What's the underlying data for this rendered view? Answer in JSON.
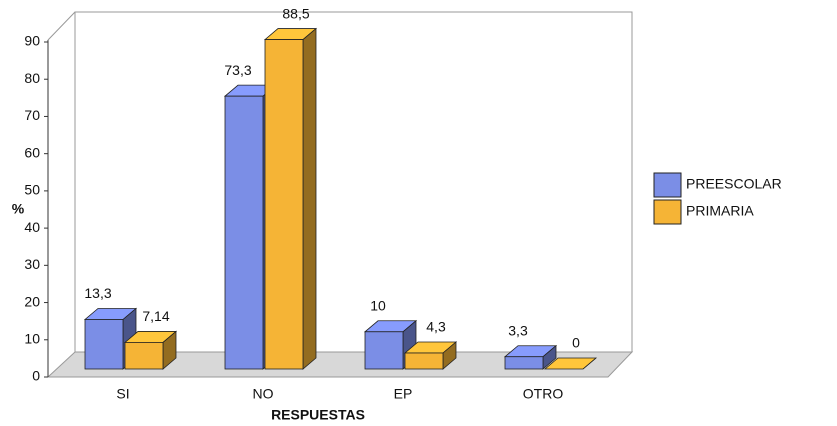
{
  "chart_data": {
    "type": "bar3d",
    "categories": [
      "SI",
      "NO",
      "EP",
      "OTRO"
    ],
    "series": [
      {
        "name": "PREESCOLAR",
        "color": "#7b8ee6",
        "values": [
          13.3,
          73.3,
          10,
          3.3
        ],
        "value_labels": [
          "13,3",
          "73,3",
          "10",
          "3,3"
        ]
      },
      {
        "name": "PRIMARIA",
        "color": "#f5b436",
        "values": [
          7.14,
          88.5,
          4.3,
          0
        ],
        "value_labels": [
          "7,14",
          "88,5",
          "4,3",
          "0"
        ]
      }
    ],
    "xlabel": "RESPUESTAS",
    "ylabel": "%",
    "ylim": [
      0,
      90
    ],
    "yticks": [
      0,
      10,
      20,
      30,
      40,
      50,
      60,
      70,
      80,
      90
    ],
    "legend": "right"
  }
}
